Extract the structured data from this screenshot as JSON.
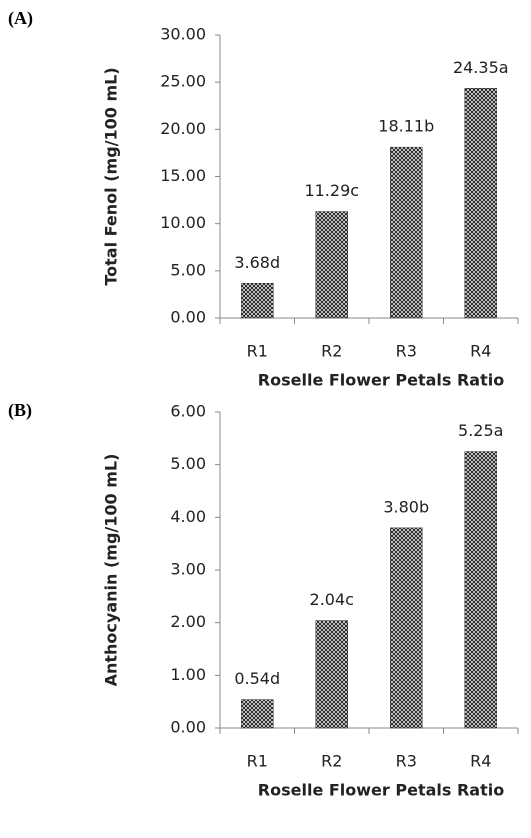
{
  "chart_data": [
    {
      "type": "bar",
      "panel_label": "(A)",
      "ylabel": "Total Fenol (mg/100 mL)",
      "xlabel": "Roselle Flower Petals Ratio",
      "categories": [
        "R1",
        "R2",
        "R3",
        "R4"
      ],
      "values": [
        3.68,
        11.29,
        18.11,
        24.35
      ],
      "value_labels": [
        "3.68d",
        "11.29c",
        "18.11b",
        "24.35a"
      ],
      "color": "#333333",
      "ylim": [
        0,
        30
      ],
      "yticks": [
        {
          "value": 0,
          "label": "0.00"
        },
        {
          "value": 5,
          "label": "5.00"
        },
        {
          "value": 10,
          "label": "10.00"
        },
        {
          "value": 15,
          "label": "15.00"
        },
        {
          "value": 20,
          "label": "20.00"
        },
        {
          "value": 25,
          "label": "25.00"
        },
        {
          "value": 30,
          "label": "30.00"
        }
      ],
      "grid": false
    },
    {
      "type": "bar",
      "panel_label": "(B)",
      "ylabel": "Anthocyanin (mg/100 mL)",
      "xlabel": "Roselle Flower Petals Ratio",
      "categories": [
        "R1",
        "R2",
        "R3",
        "R4"
      ],
      "values": [
        0.54,
        2.04,
        3.8,
        5.25
      ],
      "value_labels": [
        "0.54d",
        "2.04c",
        "3.80b",
        "5.25a"
      ],
      "color": "#333333",
      "ylim": [
        0,
        6
      ],
      "yticks": [
        {
          "value": 0,
          "label": "0.00"
        },
        {
          "value": 1,
          "label": "1.00"
        },
        {
          "value": 2,
          "label": "2.00"
        },
        {
          "value": 3,
          "label": "3.00"
        },
        {
          "value": 4,
          "label": "4.00"
        },
        {
          "value": 5,
          "label": "5.00"
        },
        {
          "value": 6,
          "label": "6.00"
        }
      ],
      "grid": false
    }
  ]
}
